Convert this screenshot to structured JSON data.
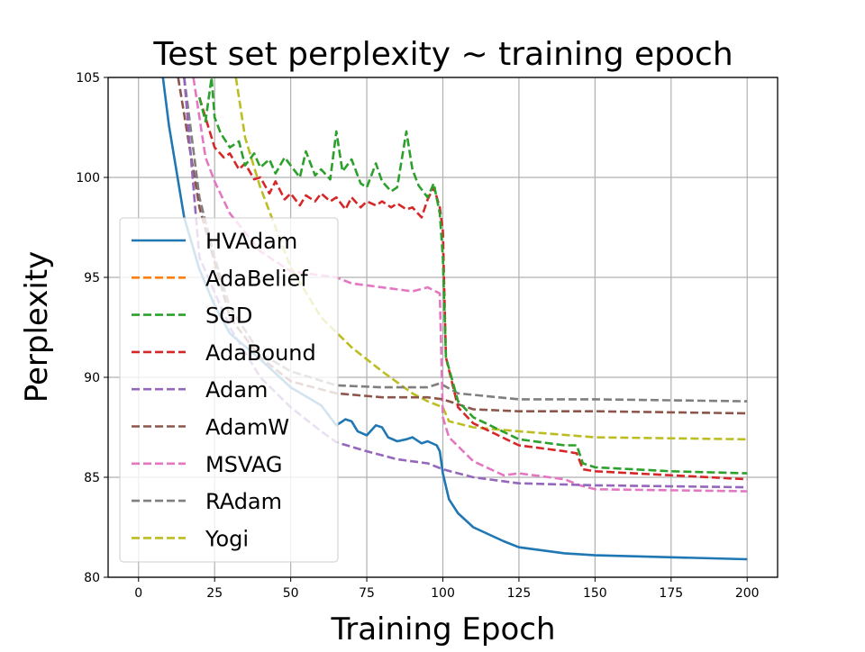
{
  "chart_data": {
    "type": "line",
    "title": "Test set perplexity ~ training epoch",
    "xlabel": "Training Epoch",
    "ylabel": "Perplexity",
    "xlim": [
      -10,
      210
    ],
    "ylim": [
      80,
      105
    ],
    "xticks": [
      0,
      25,
      50,
      75,
      100,
      125,
      150,
      175,
      200
    ],
    "yticks": [
      80,
      85,
      90,
      95,
      100,
      105
    ],
    "grid": true,
    "legend_position": "center-left",
    "series": [
      {
        "name": "HVAdam",
        "color": "#1f77b4",
        "style": "solid",
        "x": [
          8,
          10,
          15,
          20,
          25,
          30,
          40,
          50,
          60,
          65,
          68,
          70,
          72,
          75,
          78,
          80,
          82,
          85,
          88,
          90,
          93,
          95,
          98,
          99,
          100,
          102,
          105,
          110,
          120,
          125,
          140,
          150,
          175,
          200
        ],
        "y": [
          105,
          102.6,
          98,
          95.4,
          93.6,
          92.2,
          90.9,
          89.5,
          88.6,
          87.6,
          87.9,
          87.8,
          87.3,
          87.1,
          87.6,
          87.5,
          87.0,
          86.8,
          86.9,
          87.0,
          86.7,
          86.8,
          86.6,
          86.3,
          85.2,
          83.9,
          83.2,
          82.5,
          81.8,
          81.5,
          81.2,
          81.1,
          81.0,
          80.9
        ]
      },
      {
        "name": "AdaBelief",
        "color": "#ff7f0e",
        "style": "dashed",
        "x": [],
        "y": []
      },
      {
        "name": "SGD",
        "color": "#2ca02c",
        "style": "dashed",
        "x": [
          20,
          22,
          24,
          25,
          27,
          30,
          33,
          35,
          38,
          40,
          43,
          45,
          48,
          50,
          53,
          55,
          58,
          60,
          63,
          65,
          67,
          70,
          73,
          75,
          78,
          80,
          83,
          85,
          88,
          90,
          92,
          95,
          97,
          99,
          100,
          101,
          105,
          110,
          125,
          140,
          144,
          146,
          150,
          175,
          200
        ],
        "y": [
          104,
          102.8,
          105,
          103,
          102.2,
          101.5,
          101.8,
          100.6,
          101.2,
          100.5,
          100.9,
          100.2,
          101.0,
          100.6,
          100.0,
          101.3,
          100.1,
          100.4,
          99.9,
          102.3,
          100.3,
          100.9,
          99.7,
          99.5,
          100.7,
          99.8,
          99.3,
          99.5,
          102.3,
          100.4,
          99.6,
          99.0,
          99.7,
          98.2,
          96,
          91,
          88.8,
          88.0,
          86.9,
          86.6,
          86.6,
          85.7,
          85.5,
          85.3,
          85.2
        ]
      },
      {
        "name": "AdaBound",
        "color": "#d62728",
        "style": "dashed",
        "x": [
          20,
          23,
          25,
          28,
          30,
          33,
          35,
          38,
          40,
          43,
          45,
          48,
          50,
          53,
          55,
          58,
          60,
          63,
          65,
          68,
          70,
          73,
          75,
          78,
          80,
          83,
          85,
          88,
          90,
          93,
          95,
          97,
          99,
          100,
          101,
          105,
          110,
          125,
          140,
          144,
          146,
          150,
          200
        ],
        "y": [
          104,
          102.5,
          101.5,
          101.0,
          101.2,
          100.4,
          100.7,
          99.9,
          100.0,
          99.2,
          99.8,
          98.9,
          99.2,
          98.6,
          99.1,
          98.8,
          99.2,
          98.8,
          99.0,
          98.4,
          99.0,
          98.5,
          98.8,
          98.6,
          98.8,
          98.5,
          98.7,
          98.4,
          98.5,
          98.0,
          98.9,
          99.5,
          98.5,
          97.3,
          91,
          88.5,
          87.7,
          86.6,
          86.3,
          86.2,
          85.4,
          85.3,
          84.9
        ]
      },
      {
        "name": "Adam",
        "color": "#9467bd",
        "style": "dashed",
        "x": [
          15,
          20,
          30,
          40,
          50,
          60,
          65,
          75,
          85,
          95,
          100,
          110,
          125,
          150,
          200
        ],
        "y": [
          105,
          96,
          92.5,
          90,
          88.5,
          87.3,
          86.75,
          86.3,
          85.9,
          85.7,
          85.4,
          85.0,
          84.7,
          84.6,
          84.5
        ]
      },
      {
        "name": "AdamW",
        "color": "#8c564b",
        "style": "dashed",
        "x": [
          13,
          20,
          30,
          40,
          50,
          65,
          80,
          95,
          100,
          110,
          125,
          150,
          200
        ],
        "y": [
          105,
          98.5,
          93,
          91,
          89.8,
          89.2,
          89.0,
          89.0,
          88.9,
          88.4,
          88.3,
          88.3,
          88.2
        ]
      },
      {
        "name": "MSVAG",
        "color": "#e377c2",
        "style": "dashed",
        "x": [
          18,
          22,
          25,
          30,
          40,
          50,
          65,
          70,
          80,
          90,
          95,
          99,
          100,
          102,
          110,
          120,
          125,
          140,
          145,
          150,
          200
        ],
        "y": [
          105,
          101,
          99.8,
          98.2,
          96.3,
          95.3,
          95,
          94.7,
          94.5,
          94.3,
          94.5,
          94.2,
          88,
          87,
          85.8,
          85.1,
          85.2,
          84.9,
          84.6,
          84.4,
          84.3
        ]
      },
      {
        "name": "RAdam",
        "color": "#7f7f7f",
        "style": "dashed",
        "x": [
          15,
          20,
          25,
          30,
          40,
          50,
          65,
          80,
          95,
          99,
          105,
          125,
          150,
          200
        ],
        "y": [
          105,
          99,
          96,
          93.5,
          91.2,
          90.3,
          89.6,
          89.5,
          89.5,
          89.7,
          89.2,
          88.9,
          88.9,
          88.8
        ]
      },
      {
        "name": "Yogi",
        "color": "#bcbd22",
        "style": "dashed",
        "x": [
          32,
          35,
          40,
          45,
          50,
          60,
          70,
          80,
          90,
          95,
          100,
          102,
          110,
          125,
          150,
          200
        ],
        "y": [
          105,
          102,
          99.5,
          97.5,
          95.5,
          93,
          91.5,
          90.3,
          89.2,
          88.8,
          88.5,
          87.8,
          87.5,
          87.3,
          87.0,
          86.9
        ]
      }
    ]
  }
}
